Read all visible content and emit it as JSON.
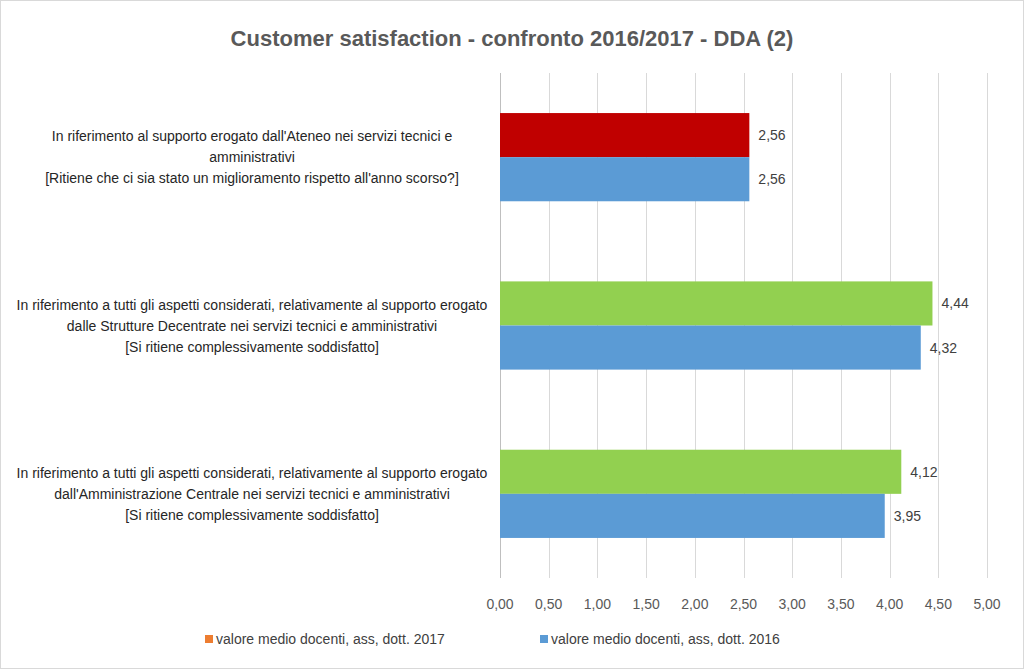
{
  "chart_data": {
    "type": "bar",
    "title": "Customer satisfaction - confronto 2016/2017 - DDA (2)",
    "orientation": "horizontal",
    "categories": [
      "In riferimento al supporto erogato dall'Ateneo nei servizi tecnici e amministrativi\n[Ritiene che ci sia stato un miglioramento rispetto all'anno scorso?]",
      "In riferimento a tutti gli aspetti considerati, relativamente al supporto erogato dalle Strutture Decentrate nei servizi tecnici e amministrativi\n[Si ritiene complessivamente soddisfatto]",
      "In riferimento a tutti gli aspetti considerati, relativamente al supporto erogato dall'Amministrazione Centrale nei servizi tecnici e amministrativi\n[Si ritiene complessivamente soddisfatto]"
    ],
    "series": [
      {
        "name": "valore medio docenti, ass, dott. 2017",
        "color": "#ed7d31",
        "colors": [
          "#c00000",
          "#92d050",
          "#92d050"
        ],
        "values": [
          2.56,
          4.44,
          4.12
        ],
        "value_labels": [
          "2,56",
          "4,44",
          "4,12"
        ]
      },
      {
        "name": "valore medio docenti, ass, dott. 2016",
        "color": "#5b9bd5",
        "values": [
          2.56,
          4.32,
          3.95
        ],
        "value_labels": [
          "2,56",
          "4,32",
          "3,95"
        ]
      }
    ],
    "xlim": [
      0,
      5
    ],
    "xticks": [
      {
        "value": 0,
        "label": "0,00"
      },
      {
        "value": 0.5,
        "label": "0,50"
      },
      {
        "value": 1,
        "label": "1,00"
      },
      {
        "value": 1.5,
        "label": "1,50"
      },
      {
        "value": 2,
        "label": "2,00"
      },
      {
        "value": 2.5,
        "label": "2,50"
      },
      {
        "value": 3,
        "label": "3,00"
      },
      {
        "value": 3.5,
        "label": "3,50"
      },
      {
        "value": 4,
        "label": "4,00"
      },
      {
        "value": 4.5,
        "label": "4,50"
      },
      {
        "value": 5,
        "label": "5,00"
      }
    ],
    "grid": true,
    "legend": "bottom",
    "data_labels": true
  }
}
